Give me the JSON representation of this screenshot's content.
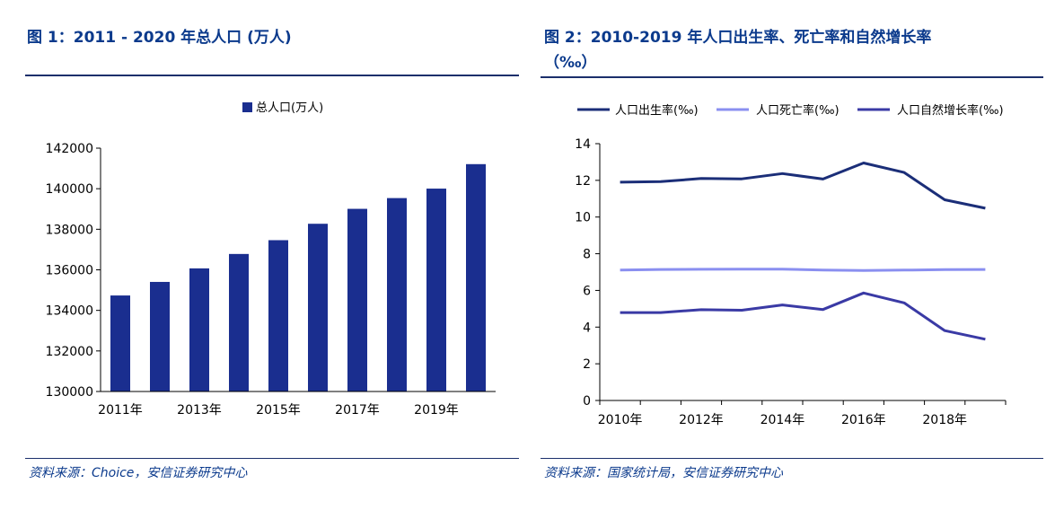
{
  "figures": [
    {
      "title": "图 1：2011 - 2020 年总人口 (万人)",
      "source": "资料来源：Choice，安信证券研究中心",
      "chart_data": {
        "type": "bar",
        "categories": [
          "2011年",
          "2012年",
          "2013年",
          "2014年",
          "2015年",
          "2016年",
          "2017年",
          "2018年",
          "2019年",
          "2020年"
        ],
        "x_tick_labels": [
          "2011年",
          "2013年",
          "2015年",
          "2017年",
          "2019年"
        ],
        "series": [
          {
            "name": "总人口(万人)",
            "values": [
              134735,
              135404,
              136072,
              136782,
              137462,
              138271,
              139008,
              139538,
              140005,
              141212
            ]
          }
        ],
        "ylim": [
          130000,
          142000
        ],
        "yticks": [
          130000,
          132000,
          134000,
          136000,
          138000,
          140000,
          142000
        ],
        "legend_position": "top-center",
        "grid": false,
        "colors": {
          "bar": "#1a2e8f"
        }
      }
    },
    {
      "title_line1": "图 2：2010-2019 年人口出生率、死亡率和自然增长率",
      "title_line2": "（‰）",
      "source": "资料来源：国家统计局，安信证券研究中心",
      "chart_data": {
        "type": "line",
        "x": [
          2010,
          2011,
          2012,
          2013,
          2014,
          2015,
          2016,
          2017,
          2018,
          2019
        ],
        "x_tick_labels": [
          "2010年",
          "2012年",
          "2014年",
          "2016年",
          "2018年"
        ],
        "series": [
          {
            "name": "人口出生率(‰)",
            "color": "#1b2e78",
            "values": [
              11.9,
              11.93,
              12.1,
              12.08,
              12.37,
              12.07,
              12.95,
              12.43,
              10.94,
              10.48
            ]
          },
          {
            "name": "人口死亡率(‰)",
            "color": "#8a8ff0",
            "values": [
              7.11,
              7.14,
              7.15,
              7.16,
              7.16,
              7.11,
              7.09,
              7.11,
              7.13,
              7.14
            ]
          },
          {
            "name": "人口自然增长率(‰)",
            "color": "#3a3aa5",
            "values": [
              4.79,
              4.79,
              4.95,
              4.92,
              5.21,
              4.96,
              5.86,
              5.32,
              3.81,
              3.34
            ]
          }
        ],
        "ylim": [
          0,
          14
        ],
        "yticks": [
          0,
          2,
          4,
          6,
          8,
          10,
          12,
          14
        ],
        "legend_position": "top",
        "grid": false
      }
    }
  ]
}
